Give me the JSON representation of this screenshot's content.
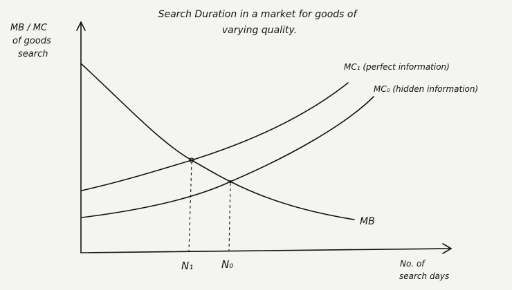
{
  "title_line1": "Search Duration in a market for goods of",
  "title_line2": "varying quality.",
  "y_axis": {
    "line1": "MB / MC",
    "line2": "of goods",
    "line3": "search"
  },
  "x_axis": {
    "line1": "No. of",
    "line2": "search days"
  },
  "curves": {
    "mc1": "MC₁ (perfect information)",
    "mc0": "MC₀ (hidden information)",
    "mb": "MB"
  },
  "ticks": {
    "n1": "N₁",
    "n0": "N₀"
  }
}
